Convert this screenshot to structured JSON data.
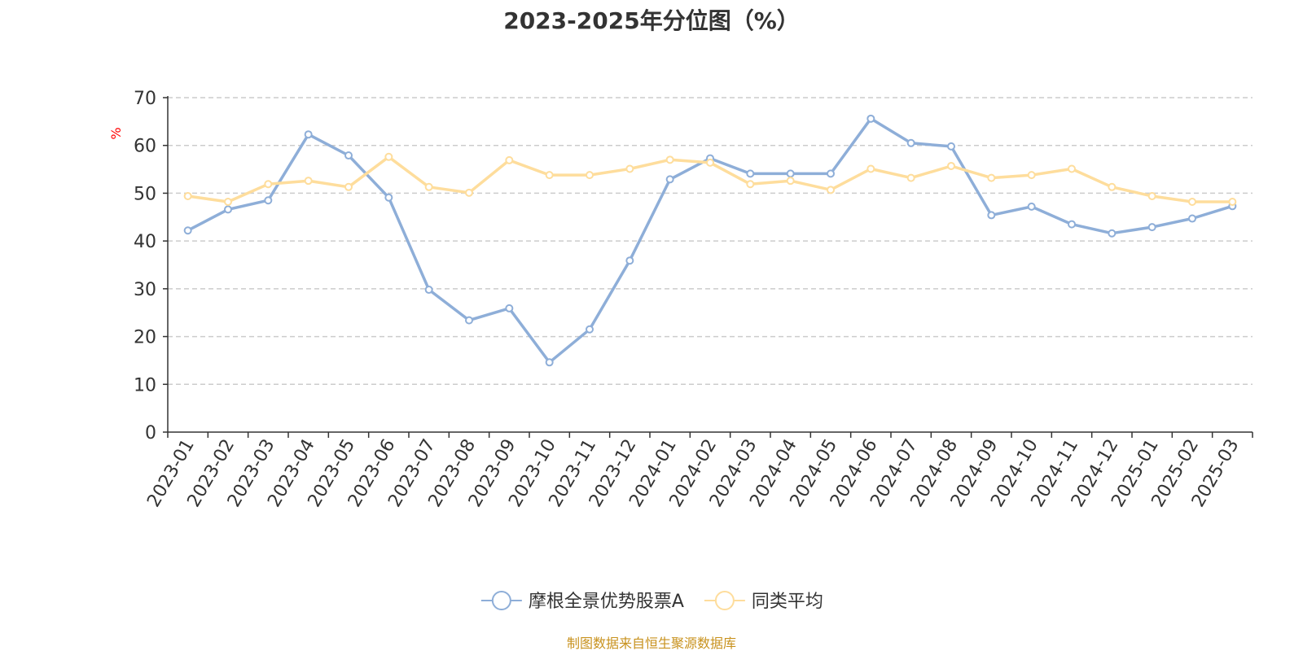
{
  "colors": {
    "series1": "#8eaed8",
    "series2": "#fedd9c",
    "grid": "#cccccc",
    "axis": "#333333",
    "text": "#333333",
    "unit": "#ff0000",
    "source": "#c8921e"
  },
  "chart_data": {
    "type": "line",
    "title": "2023-2025年分位图（%）",
    "ylabel": "%",
    "xlabel": "",
    "ylim": [
      0,
      70
    ],
    "yticks": [
      0,
      10,
      20,
      30,
      40,
      50,
      60,
      70
    ],
    "grid": true,
    "legend_position": "bottom",
    "categories": [
      "2023-01",
      "2023-02",
      "2023-03",
      "2023-04",
      "2023-05",
      "2023-06",
      "2023-07",
      "2023-08",
      "2023-09",
      "2023-10",
      "2023-11",
      "2023-12",
      "2024-01",
      "2024-02",
      "2024-03",
      "2024-04",
      "2024-05",
      "2024-06",
      "2024-07",
      "2024-08",
      "2024-09",
      "2024-10",
      "2024-11",
      "2024-12",
      "2025-01",
      "2025-02",
      "2025-03"
    ],
    "series": [
      {
        "name": "摩根全景优势股票A",
        "color": "#8eaed8",
        "values": [
          42.2,
          46.6,
          48.5,
          62.3,
          57.9,
          49.1,
          29.8,
          23.4,
          25.9,
          14.6,
          21.5,
          35.9,
          52.9,
          57.3,
          54.1,
          54.1,
          54.1,
          65.6,
          60.5,
          59.8,
          45.4,
          47.2,
          43.5,
          41.6,
          42.9,
          44.7,
          47.3
        ]
      },
      {
        "name": "同类平均",
        "color": "#fedd9c",
        "values": [
          49.4,
          48.2,
          51.9,
          52.6,
          51.3,
          57.6,
          51.3,
          50.1,
          56.9,
          53.8,
          53.8,
          55.1,
          57.0,
          56.4,
          51.9,
          52.6,
          50.7,
          55.1,
          53.2,
          55.7,
          53.2,
          53.8,
          55.1,
          51.3,
          49.4,
          48.2,
          48.2
        ]
      }
    ]
  },
  "footer": {
    "source": "制图数据来自恒生聚源数据库"
  }
}
